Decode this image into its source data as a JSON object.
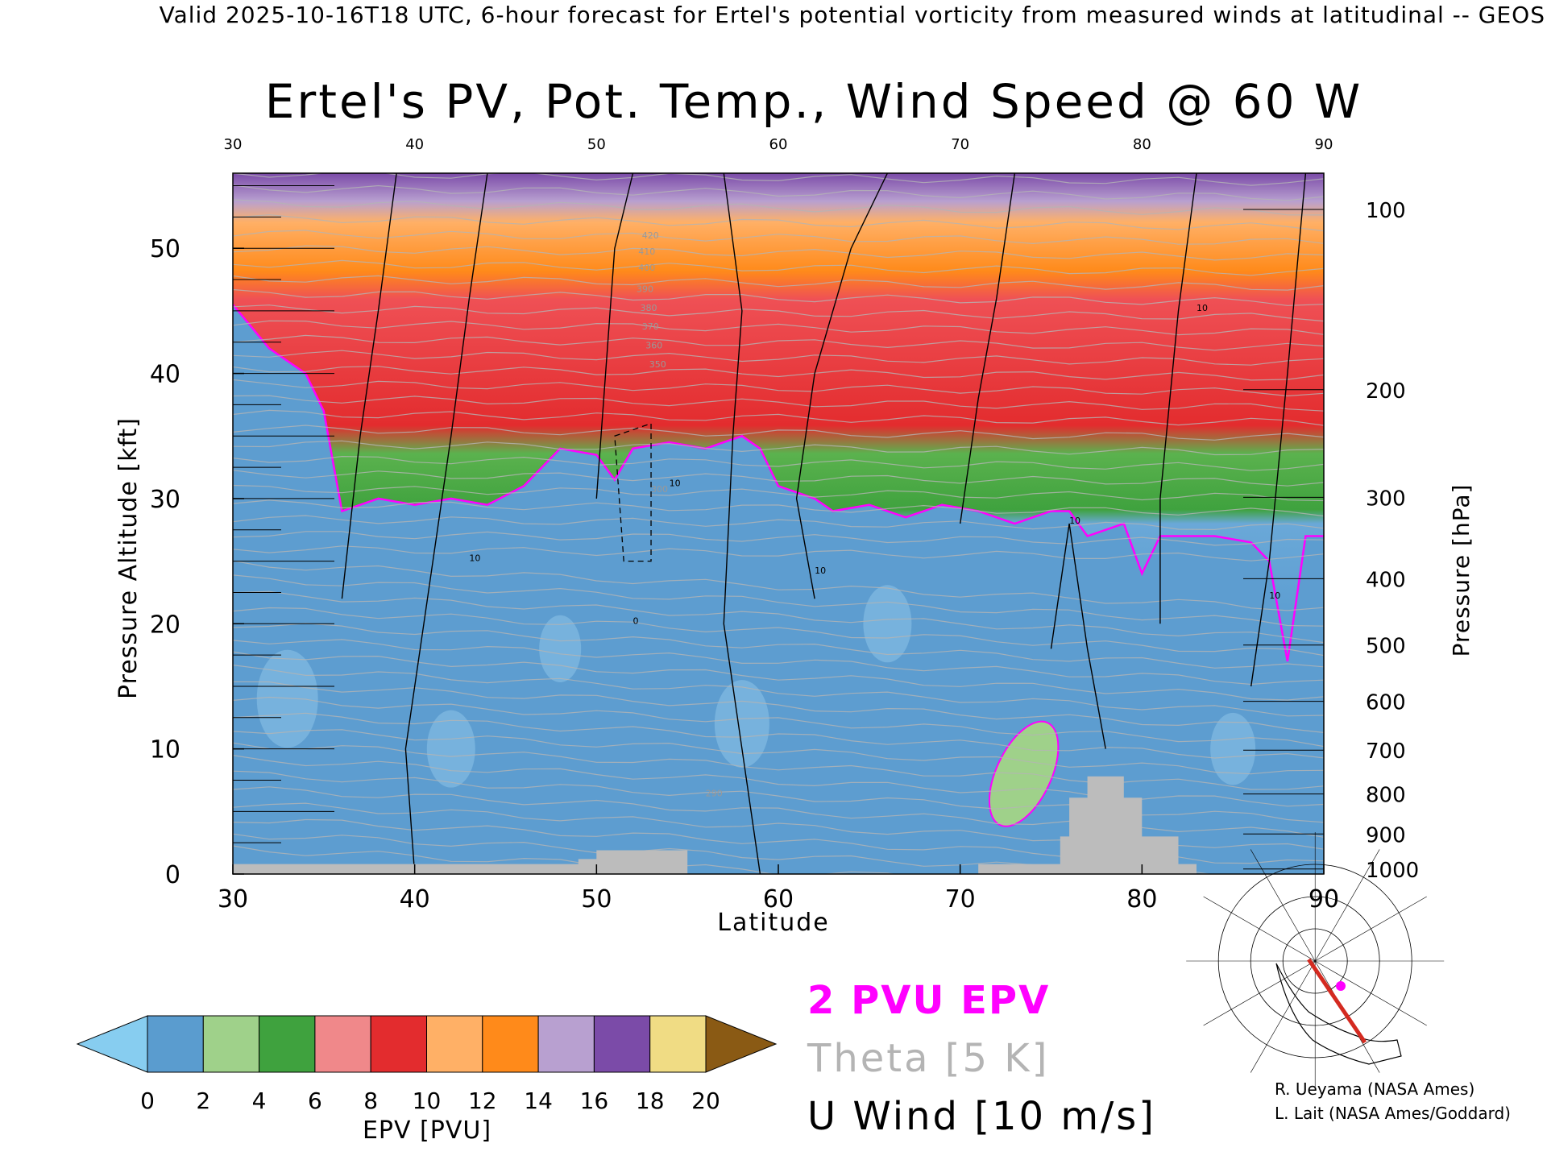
{
  "header": {
    "valid_line": "Valid 2025-10-16T18 UTC, 6-hour forecast for Ertel's potential vorticity from measured winds at latitudinal -- GEOS",
    "title": "Ertel's PV, Pot. Temp., Wind Speed @ 60 W"
  },
  "chart_data": {
    "type": "heatmap",
    "title": "Ertel's PV, Pot. Temp., Wind Speed @ 60 W",
    "xlabel": "Latitude",
    "ylabel_left": "Pressure Altitude [kft]",
    "ylabel_right": "Pressure [hPa]",
    "xlim": [
      30,
      90
    ],
    "ylim_kft": [
      0,
      56
    ],
    "x_ticks": [
      30,
      40,
      50,
      60,
      70,
      80,
      90
    ],
    "x_ticks_top": [
      30,
      40,
      50,
      60,
      70,
      80,
      90
    ],
    "y_ticks_kft": [
      0,
      10,
      20,
      30,
      40,
      50
    ],
    "pressure_ticks": [
      {
        "hPa": 100,
        "kft": 53.1
      },
      {
        "hPa": 200,
        "kft": 38.7
      },
      {
        "hPa": 300,
        "kft": 30.1
      },
      {
        "hPa": 400,
        "kft": 23.6
      },
      {
        "hPa": 500,
        "kft": 18.3
      },
      {
        "hPa": 600,
        "kft": 13.8
      },
      {
        "hPa": 700,
        "kft": 9.9
      },
      {
        "hPa": 800,
        "kft": 6.4
      },
      {
        "hPa": 900,
        "kft": 3.2
      },
      {
        "hPa": 1000,
        "kft": 0.4
      }
    ],
    "tropopause_2pvu_kft": [
      [
        30,
        45.5
      ],
      [
        32,
        42
      ],
      [
        34,
        40
      ],
      [
        35,
        37
      ],
      [
        36,
        29
      ],
      [
        37,
        29.5
      ],
      [
        38,
        30
      ],
      [
        40,
        29.5
      ],
      [
        42,
        30
      ],
      [
        44,
        29.5
      ],
      [
        46,
        31
      ],
      [
        48,
        34
      ],
      [
        50,
        33.5
      ],
      [
        51,
        31.5
      ],
      [
        52,
        34
      ],
      [
        54,
        34.5
      ],
      [
        56,
        34
      ],
      [
        58,
        35
      ],
      [
        59,
        34
      ],
      [
        60,
        31
      ],
      [
        62,
        30
      ],
      [
        63,
        29
      ],
      [
        65,
        29.5
      ],
      [
        67,
        28.5
      ],
      [
        69,
        29.5
      ],
      [
        71,
        29
      ],
      [
        73,
        28
      ],
      [
        75,
        29
      ],
      [
        76,
        29
      ],
      [
        77,
        27
      ],
      [
        79,
        28
      ],
      [
        80,
        24
      ],
      [
        81,
        27
      ],
      [
        82,
        27
      ],
      [
        84,
        27
      ],
      [
        86,
        26.5
      ],
      [
        87,
        25
      ],
      [
        88,
        17
      ],
      [
        89,
        27
      ],
      [
        90,
        27
      ]
    ],
    "colorbar": {
      "label": "EPV [PVU]",
      "ticks": [
        0,
        2,
        4,
        6,
        8,
        10,
        12,
        14,
        16,
        18,
        20
      ],
      "colors": [
        "#87cdf0",
        "#5a9ccf",
        "#9fd18a",
        "#3fa23e",
        "#f0888a",
        "#e32c2e",
        "#ffb066",
        "#ff8a1a",
        "#b8a0d0",
        "#7b4ba8",
        "#f0dc84",
        "#8a5a14"
      ]
    },
    "legend": {
      "epv_label": "2 PVU EPV",
      "theta_label": "Theta [5 K]",
      "wind_label": "U Wind [10 m/s]",
      "epv_color": "#ff00ff",
      "theta_color": "#b4b4b4",
      "wind_color": "#000000"
    },
    "theta_labels": [
      "420",
      "410",
      "400",
      "390",
      "380",
      "370",
      "360",
      "350",
      "300",
      "290"
    ],
    "wind_labels": [
      "0",
      "10"
    ]
  },
  "credits": {
    "line1": "R. Ueyama (NASA Ames)",
    "line2": "L. Lait (NASA Ames/Goddard)"
  }
}
